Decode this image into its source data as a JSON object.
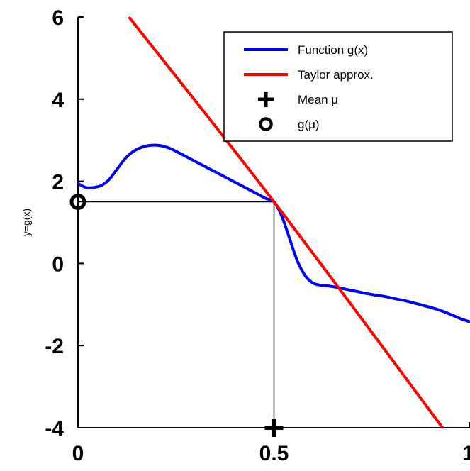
{
  "chart_data": {
    "type": "line",
    "xlabel": "",
    "ylabel": "y=g(x)",
    "xlim": [
      0,
      1
    ],
    "ylim": [
      -4,
      6
    ],
    "xticks": [
      {
        "value": 0,
        "label": "0"
      },
      {
        "value": 0.5,
        "label": "0.5"
      },
      {
        "value": 1,
        "label": "1"
      }
    ],
    "yticks": [
      {
        "value": -4,
        "label": "-4"
      },
      {
        "value": -2,
        "label": "-2"
      },
      {
        "value": 0,
        "label": "0"
      },
      {
        "value": 2,
        "label": "2"
      },
      {
        "value": 4,
        "label": "4"
      },
      {
        "value": 6,
        "label": "6"
      }
    ],
    "grid": false,
    "legend": {
      "placement": "top-right",
      "entries": [
        {
          "label": "Function g(x)",
          "marker": "line",
          "color": "#0000ff"
        },
        {
          "label": "Taylor approx.",
          "marker": "line",
          "color": "#ff0000"
        },
        {
          "label": "Mean μ",
          "marker": "plus",
          "color": "#000000"
        },
        {
          "label": "g(μ)",
          "marker": "circle",
          "color": "#000000"
        }
      ]
    },
    "series": [
      {
        "name": "Function g(x)",
        "color": "#0000ff",
        "x": [
          0,
          0.02,
          0.04,
          0.06,
          0.08,
          0.1,
          0.12,
          0.14,
          0.16,
          0.18,
          0.2,
          0.22,
          0.24,
          0.26,
          0.28,
          0.3,
          0.32,
          0.34,
          0.36,
          0.38,
          0.4,
          0.42,
          0.44,
          0.46,
          0.48,
          0.5,
          0.52,
          0.54,
          0.56,
          0.58,
          0.6,
          0.62,
          0.64,
          0.66,
          0.68,
          0.7,
          0.72,
          0.74,
          0.76,
          0.78,
          0.8,
          0.82,
          0.84,
          0.86,
          0.88,
          0.9,
          0.92,
          0.94,
          0.96,
          0.98,
          1.0
        ],
        "y": [
          1.95,
          1.85,
          1.85,
          1.9,
          2.05,
          2.3,
          2.55,
          2.72,
          2.82,
          2.87,
          2.88,
          2.85,
          2.78,
          2.68,
          2.58,
          2.48,
          2.38,
          2.28,
          2.18,
          2.08,
          1.98,
          1.88,
          1.78,
          1.68,
          1.58,
          1.5,
          1.15,
          0.6,
          0.05,
          -0.3,
          -0.48,
          -0.53,
          -0.55,
          -0.58,
          -0.62,
          -0.66,
          -0.7,
          -0.74,
          -0.77,
          -0.8,
          -0.84,
          -0.88,
          -0.92,
          -0.97,
          -1.02,
          -1.07,
          -1.13,
          -1.2,
          -1.28,
          -1.36,
          -1.42
        ]
      },
      {
        "name": "Taylor approx.",
        "color": "#ff0000",
        "x": [
          0.13,
          0.5,
          0.93
        ],
        "y": [
          6.0,
          1.5,
          -4.0
        ]
      }
    ],
    "points": [
      {
        "name": "Mean μ",
        "marker": "plus",
        "x": 0.5,
        "y": -4
      },
      {
        "name": "g(μ)",
        "marker": "circle",
        "x": 0,
        "y": 1.5
      }
    ],
    "guide_lines": [
      {
        "from": [
          0,
          1.5
        ],
        "to": [
          0.5,
          1.5
        ]
      },
      {
        "from": [
          0.5,
          1.5
        ],
        "to": [
          0.5,
          -4
        ]
      }
    ]
  }
}
